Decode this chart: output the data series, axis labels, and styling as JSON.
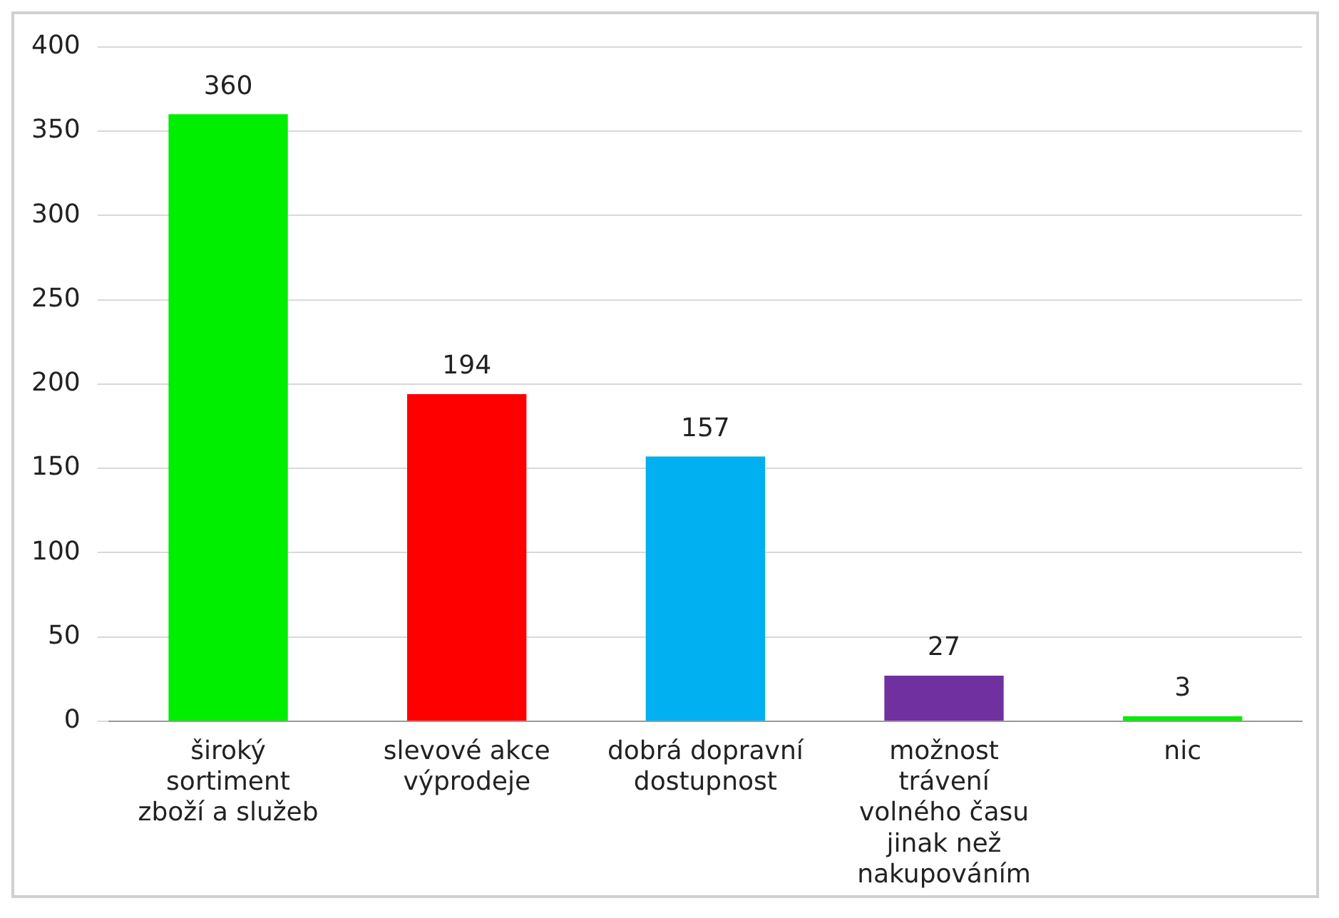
{
  "chart_data": {
    "type": "bar",
    "categories": [
      "široký sortiment zboží a služeb",
      "slevové akce výprodeje",
      "dobrá dopravní dostupnost",
      "možnost trávení volného času jinak než nakupováním",
      "nic"
    ],
    "values": [
      360,
      194,
      157,
      27,
      3
    ],
    "colors": [
      "#00ee00",
      "#ff0000",
      "#00b0f0",
      "#7030a0",
      "#00ee00"
    ],
    "ylim": [
      0,
      400
    ],
    "yticks": [
      0,
      50,
      100,
      150,
      200,
      250,
      300,
      350,
      400
    ],
    "grid": "y",
    "data_labels": true,
    "legend": false
  }
}
